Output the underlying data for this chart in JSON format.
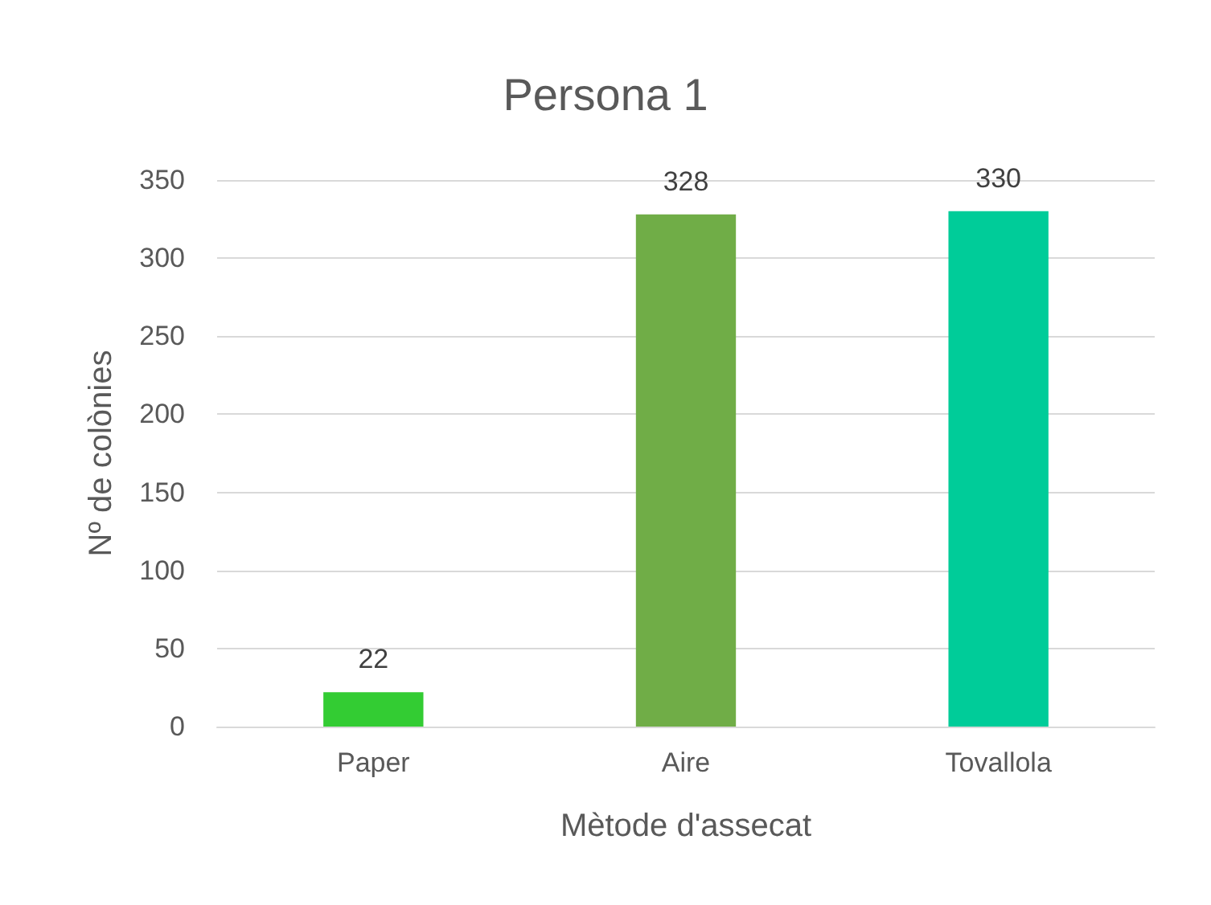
{
  "chart_data": {
    "type": "bar",
    "title": "Persona 1",
    "xlabel": "Mètode d'assecat",
    "ylabel": "Nº de colònies",
    "categories": [
      "Paper",
      "Aire",
      "Tovallola"
    ],
    "values": [
      22,
      328,
      330
    ],
    "colors": [
      "#33cc33",
      "#70ad47",
      "#00cc99"
    ],
    "ylim": [
      0,
      350
    ],
    "yticks": [
      0,
      50,
      100,
      150,
      200,
      250,
      300,
      350
    ],
    "grid": "y",
    "data_labels": true
  }
}
